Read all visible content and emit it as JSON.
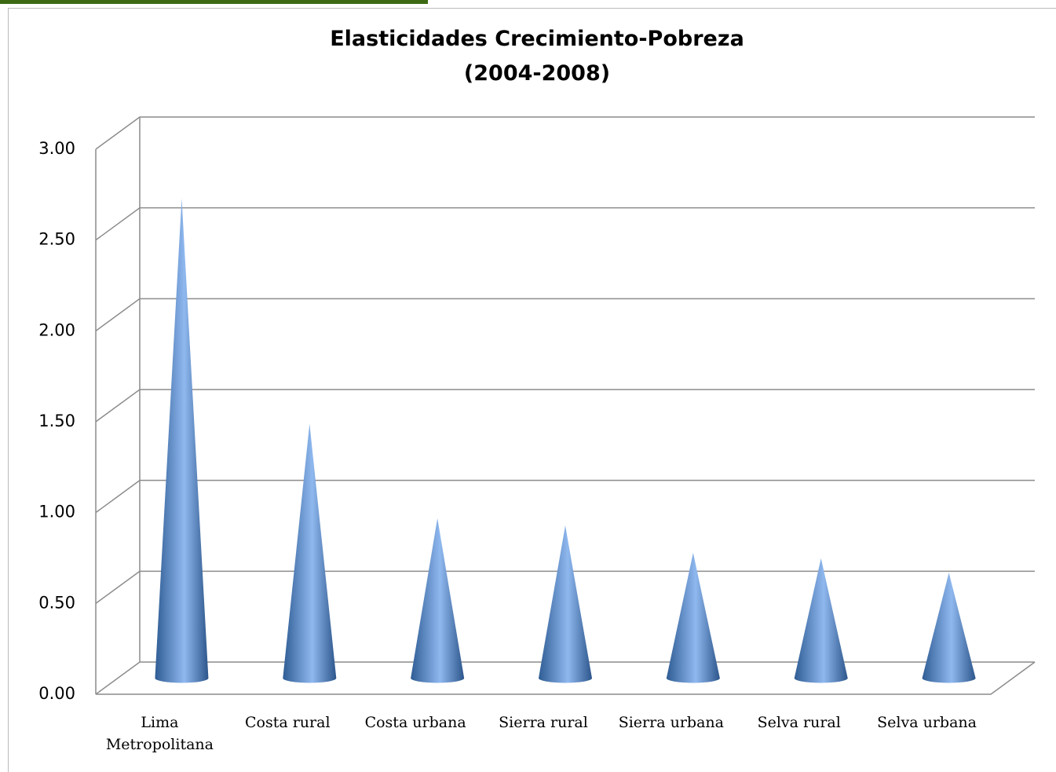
{
  "chart_data": {
    "type": "cone",
    "title": "Elasticidades Crecimiento-Pobreza",
    "subtitle": "(2004-2008)",
    "categories": [
      "Lima Metropolitana",
      "Costa rural",
      "Costa urbana",
      "Sierra rural",
      "Sierra urbana",
      "Selva rural",
      "Selva urbana"
    ],
    "values": [
      2.64,
      1.4,
      0.88,
      0.84,
      0.69,
      0.66,
      0.58
    ],
    "color": "#4f81bd",
    "ylim": [
      0,
      3
    ],
    "yticks": [
      {
        "value": 0,
        "label": "0.00"
      },
      {
        "value": 0.5,
        "label": "0.50"
      },
      {
        "value": 1,
        "label": "1.00"
      },
      {
        "value": 1.5,
        "label": "1.50"
      },
      {
        "value": 2,
        "label": "2.00"
      },
      {
        "value": 2.5,
        "label": "2.50"
      },
      {
        "value": 3,
        "label": "3.00"
      }
    ],
    "grid": true
  }
}
